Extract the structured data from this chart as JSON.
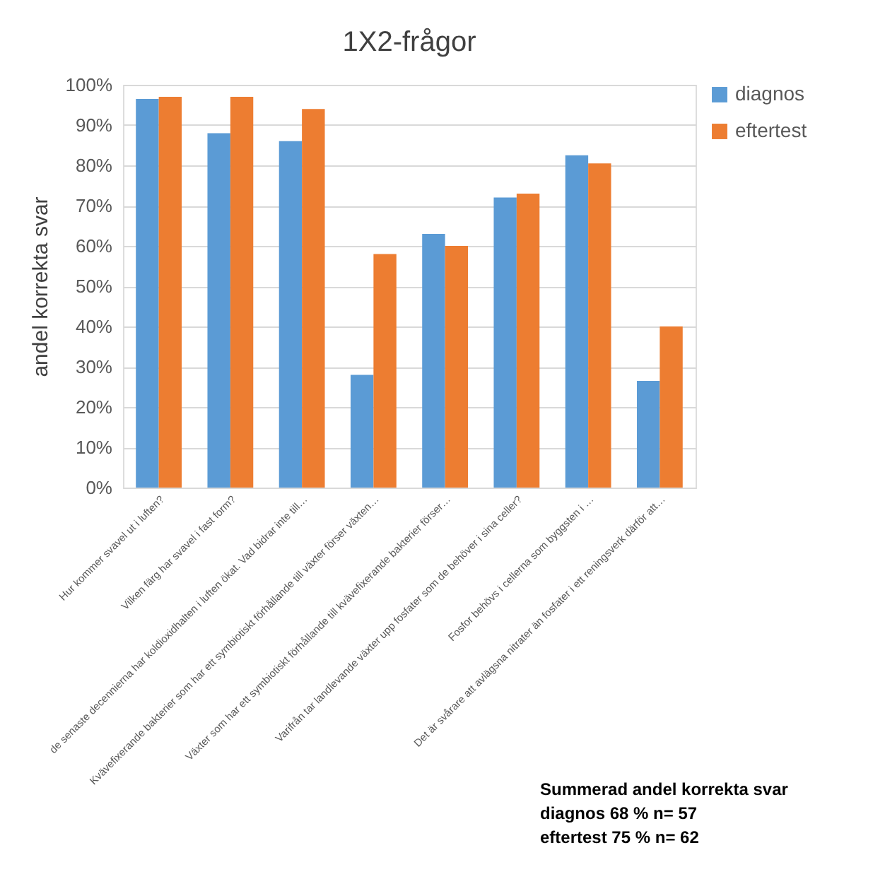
{
  "chart_data": {
    "type": "bar",
    "title": "1X2-frågor",
    "ylabel": "andel korrekta svar",
    "categories": [
      "Hur kommer svavel ut i luften?",
      "Vilken färg har svavel i fast form?",
      "de senaste decennierna har koldioxidhalten i luften ökat. Vad bidrar inte till…",
      "Kvävefixerande bakterier som har ett symbiotiskt förhållande till växter förser växten…",
      "Växter som har ett symbiotiskt förhållande till kvävefixerande bakterier förser…",
      "Varifrån tar landlevande växter upp fosfater som de behöver i sina celler?",
      "Fosfor behövs i cellerna som byggsten i …",
      "Det är svårare att avlägsna nitrater än fosfater i ett reningsverk därför att…"
    ],
    "series": [
      {
        "name": "diagnos",
        "color": "#5b9bd5",
        "values": [
          96.5,
          88,
          86,
          28,
          63,
          72,
          82.5,
          26.5
        ]
      },
      {
        "name": "eftertest",
        "color": "#ed7d31",
        "values": [
          97,
          97,
          94,
          58,
          60,
          73,
          80.5,
          40
        ]
      }
    ],
    "ylim": [
      0,
      100
    ],
    "yticks": [
      {
        "value": 0,
        "label": "0%"
      },
      {
        "value": 10,
        "label": "10%"
      },
      {
        "value": 20,
        "label": "20%"
      },
      {
        "value": 30,
        "label": "30%"
      },
      {
        "value": 40,
        "label": "40%"
      },
      {
        "value": 50,
        "label": "50%"
      },
      {
        "value": 60,
        "label": "60%"
      },
      {
        "value": 70,
        "label": "70%"
      },
      {
        "value": 80,
        "label": "80%"
      },
      {
        "value": 90,
        "label": "90%"
      },
      {
        "value": 100,
        "label": "100%"
      }
    ],
    "grid": "y",
    "legend": "right",
    "annotations": [
      "Summerad andel korrekta svar",
      "diagnos 68 % n= 57",
      "eftertest 75 % n= 62"
    ]
  }
}
